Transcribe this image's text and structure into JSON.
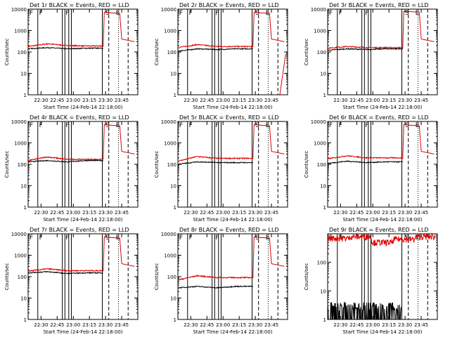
{
  "page": {
    "background": "#ffffff"
  },
  "colors": {
    "events": "#000000",
    "lld": "#e00000",
    "axis": "#000000"
  },
  "common": {
    "xlabel": "Start Time (24-Feb-14 22:18:00)",
    "ylabel": "Counts/sec",
    "xticks": [
      "22:30",
      "22:45",
      "23:00",
      "23:15",
      "23:30",
      "23:45"
    ],
    "yticks_major": [
      "1",
      "10",
      "100",
      "1000",
      "10000"
    ]
  },
  "chart_data": [
    {
      "type": "line",
      "title": "Det 1r BLACK = Events, RED = LLD",
      "ylim": [
        1,
        10000
      ],
      "yscale": "log",
      "markers": [
        "F",
        "F",
        "F",
        "S",
        "E"
      ],
      "series": [
        {
          "name": "Events",
          "values": [
            140,
            160,
            140,
            150,
            150
          ]
        },
        {
          "name": "LLD",
          "values": [
            180,
            240,
            200,
            190,
            7000
          ]
        }
      ]
    },
    {
      "type": "line",
      "title": "Det 2r BLACK = Events, RED = LLD",
      "ylim": [
        1,
        10000
      ],
      "yscale": "log",
      "markers": [
        "F",
        "F",
        "F",
        "S",
        "E"
      ],
      "series": [
        {
          "name": "Events",
          "values": [
            110,
            140,
            130,
            140,
            140
          ]
        },
        {
          "name": "LLD",
          "values": [
            160,
            220,
            180,
            180,
            7000
          ]
        }
      ]
    },
    {
      "type": "line",
      "title": "Det 3r BLACK = Events, RED = LLD",
      "ylim": [
        1,
        10000
      ],
      "yscale": "log",
      "markers": [
        "F",
        "F",
        "F",
        "S",
        "E"
      ],
      "series": [
        {
          "name": "Events",
          "values": [
            120,
            140,
            130,
            140,
            140
          ]
        },
        {
          "name": "LLD",
          "values": [
            150,
            180,
            160,
            160,
            8000
          ]
        }
      ]
    },
    {
      "type": "line",
      "title": "Det 4r BLACK = Events, RED = LLD",
      "ylim": [
        1,
        10000
      ],
      "yscale": "log",
      "markers": [
        "F",
        "F",
        "F",
        "S",
        "E"
      ],
      "series": [
        {
          "name": "Events",
          "values": [
            130,
            150,
            130,
            150,
            150
          ]
        },
        {
          "name": "LLD",
          "values": [
            150,
            220,
            170,
            170,
            7000
          ]
        }
      ]
    },
    {
      "type": "line",
      "title": "Det 5r BLACK = Events, RED = LLD",
      "ylim": [
        1,
        10000
      ],
      "yscale": "log",
      "markers": [
        "F",
        "F",
        "F",
        "S",
        "E"
      ],
      "series": [
        {
          "name": "Events",
          "values": [
            100,
            130,
            120,
            120,
            120
          ]
        },
        {
          "name": "LLD",
          "values": [
            140,
            230,
            190,
            190,
            7000
          ]
        }
      ]
    },
    {
      "type": "line",
      "title": "Det 6r BLACK = Events, RED = LLD",
      "ylim": [
        1,
        10000
      ],
      "yscale": "log",
      "markers": [
        "F",
        "F",
        "F",
        "S",
        "E"
      ],
      "series": [
        {
          "name": "Events",
          "values": [
            110,
            140,
            120,
            130,
            130
          ]
        },
        {
          "name": "LLD",
          "values": [
            180,
            250,
            200,
            200,
            7000
          ]
        }
      ]
    },
    {
      "type": "line",
      "title": "Det 7r BLACK = Events, RED = LLD",
      "ylim": [
        1,
        10000
      ],
      "yscale": "log",
      "markers": [
        "F",
        "F",
        "F",
        "S",
        "E"
      ],
      "series": [
        {
          "name": "Events",
          "values": [
            150,
            170,
            140,
            150,
            150
          ]
        },
        {
          "name": "LLD",
          "values": [
            180,
            230,
            190,
            190,
            7000
          ]
        }
      ]
    },
    {
      "type": "line",
      "title": "Det 8r BLACK = Events, RED = LLD",
      "ylim": [
        1,
        10000
      ],
      "yscale": "log",
      "markers": [
        "F",
        "F",
        "F",
        "S",
        "E"
      ],
      "series": [
        {
          "name": "Events",
          "values": [
            30,
            35,
            30,
            35,
            35
          ]
        },
        {
          "name": "LLD",
          "values": [
            70,
            110,
            90,
            90,
            7000
          ]
        }
      ]
    },
    {
      "type": "line",
      "title": "Det 9r BLACK = Events, RED = LLD",
      "ylim": [
        1,
        1000
      ],
      "yscale": "log",
      "yticks_major": [
        "1",
        "10",
        "100"
      ],
      "markers": [
        "F",
        "F",
        "F",
        "S",
        "E"
      ],
      "series": [
        {
          "name": "Events",
          "values": [
            1.5,
            2,
            1.5,
            1,
            1
          ]
        },
        {
          "name": "LLD",
          "values": [
            700,
            800,
            500,
            650,
            800
          ]
        }
      ]
    }
  ]
}
